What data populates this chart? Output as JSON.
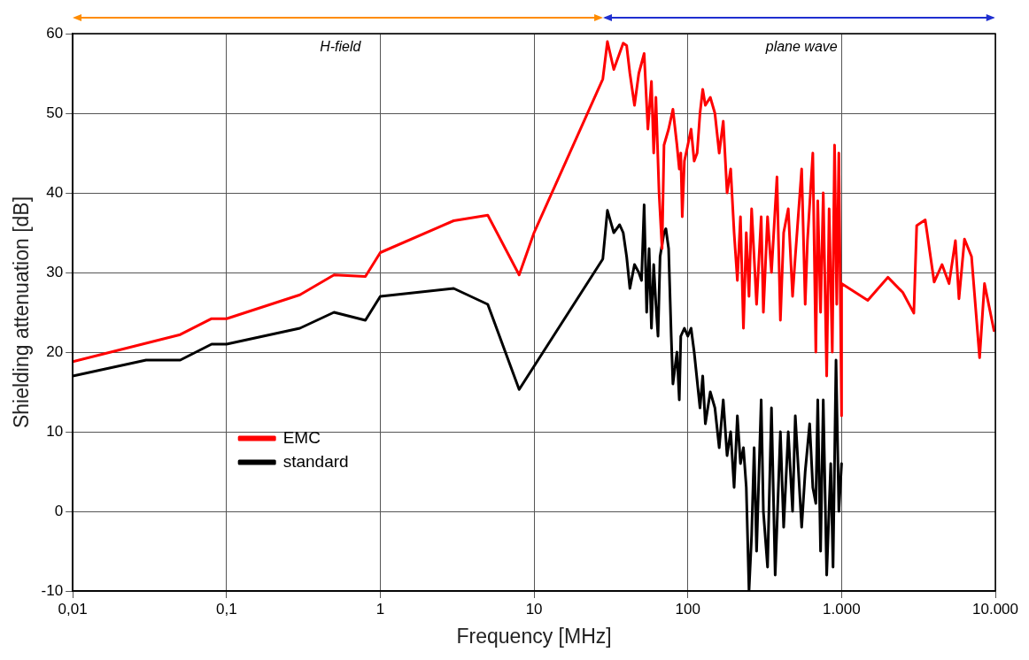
{
  "chart_data": {
    "type": "line",
    "xlabel": "Frequency [MHz]",
    "ylabel": "Shielding attenuation [dB]",
    "log": "x",
    "grid": true,
    "legend": "bottom left",
    "marker": "none",
    "line_style": "solid",
    "xlim": [
      0.01,
      10000
    ],
    "xticks": [
      {
        "value": 0.01,
        "label": "0,01"
      },
      {
        "value": 0.1,
        "label": "0,1"
      },
      1,
      10,
      100,
      {
        "value": 1000,
        "label": "1.000"
      },
      {
        "value": 10000,
        "label": "10.000"
      }
    ],
    "ylim": [
      -10,
      60
    ],
    "yticks": [
      -10,
      0,
      10,
      20,
      30,
      40,
      50,
      60
    ],
    "annotations": [
      "H-field",
      "plane wave"
    ],
    "series": [
      {
        "name": "EMC",
        "color": "#ff0000",
        "x": [
          0.01,
          0.05,
          0.08,
          0.1,
          0.3,
          0.5,
          0.8,
          1,
          3,
          5,
          8,
          10,
          28,
          30,
          33,
          38,
          40,
          42,
          45,
          48,
          52,
          55,
          58,
          60,
          62,
          65,
          68,
          70,
          75,
          80,
          85,
          88,
          90,
          92,
          95,
          100,
          105,
          110,
          115,
          120,
          125,
          130,
          140,
          150,
          160,
          170,
          180,
          190,
          200,
          210,
          220,
          230,
          240,
          250,
          260,
          280,
          300,
          310,
          330,
          350,
          380,
          400,
          420,
          450,
          480,
          500,
          550,
          580,
          600,
          650,
          680,
          700,
          730,
          760,
          800,
          830,
          870,
          900,
          930,
          960,
          1000,
          1000,
          1480,
          2000,
          2500,
          2950,
          3080,
          3500,
          4000,
          4500,
          5000,
          5500,
          5800,
          6300,
          7000,
          7900,
          8500,
          9800
        ],
        "values": [
          18.8,
          22.2,
          24.2,
          24.2,
          27.2,
          29.7,
          29.5,
          32.5,
          36.5,
          37.2,
          29.7,
          35,
          54.3,
          59,
          55.5,
          58.8,
          58.5,
          55,
          51,
          55,
          57.5,
          48,
          54,
          45,
          52,
          40,
          33,
          46,
          48,
          50.5,
          46,
          43,
          45,
          37,
          44,
          46,
          48,
          44,
          45,
          50,
          53,
          51,
          52,
          50,
          45,
          49,
          40,
          43,
          35,
          29,
          37,
          23,
          35,
          27,
          38,
          26,
          37,
          25,
          37,
          30,
          42,
          24,
          35,
          38,
          27,
          32,
          43,
          26,
          34,
          45,
          20,
          39,
          25,
          40,
          17,
          38,
          20,
          46,
          26,
          45,
          12,
          28.6,
          26.5,
          29.4,
          27.5,
          24.9,
          35.9,
          36.6,
          28.8,
          31,
          28.6,
          34,
          26.7,
          34.2,
          32,
          19.3,
          28.6,
          22.7
        ]
      },
      {
        "name": "standard",
        "color": "#000000",
        "x": [
          0.01,
          0.03,
          0.05,
          0.08,
          0.1,
          0.3,
          0.5,
          0.8,
          1,
          3,
          5,
          8,
          28,
          30,
          33,
          36,
          38,
          40,
          42,
          45,
          48,
          50,
          52,
          54,
          56,
          58,
          60,
          62,
          64,
          66,
          70,
          72,
          75,
          78,
          80,
          85,
          88,
          90,
          95,
          100,
          105,
          110,
          120,
          125,
          130,
          140,
          150,
          160,
          170,
          180,
          190,
          200,
          210,
          220,
          230,
          240,
          250,
          260,
          270,
          280,
          300,
          310,
          330,
          350,
          370,
          400,
          420,
          450,
          480,
          500,
          550,
          580,
          620,
          650,
          680,
          700,
          730,
          760,
          800,
          850,
          880,
          920,
          960,
          1000
        ],
        "values": [
          17,
          19,
          19,
          21,
          21,
          23,
          25,
          24,
          27,
          28,
          26,
          15.3,
          31.7,
          37.8,
          35,
          36,
          35,
          32,
          28,
          31,
          30,
          29,
          38.5,
          25,
          33,
          23,
          31,
          26,
          22,
          32,
          35,
          35.5,
          33,
          22,
          16,
          20,
          14,
          22,
          23,
          22,
          23,
          20,
          13,
          17,
          11,
          15,
          13,
          8,
          14,
          7,
          10,
          3,
          12,
          6,
          8,
          3,
          -10,
          -3,
          8,
          -5,
          14,
          0,
          -7,
          13,
          -8,
          10,
          -2,
          10,
          0,
          12,
          -2,
          5,
          11,
          3,
          1,
          14,
          -5,
          14,
          -8,
          6,
          -7,
          19,
          0,
          6
        ]
      }
    ]
  }
}
